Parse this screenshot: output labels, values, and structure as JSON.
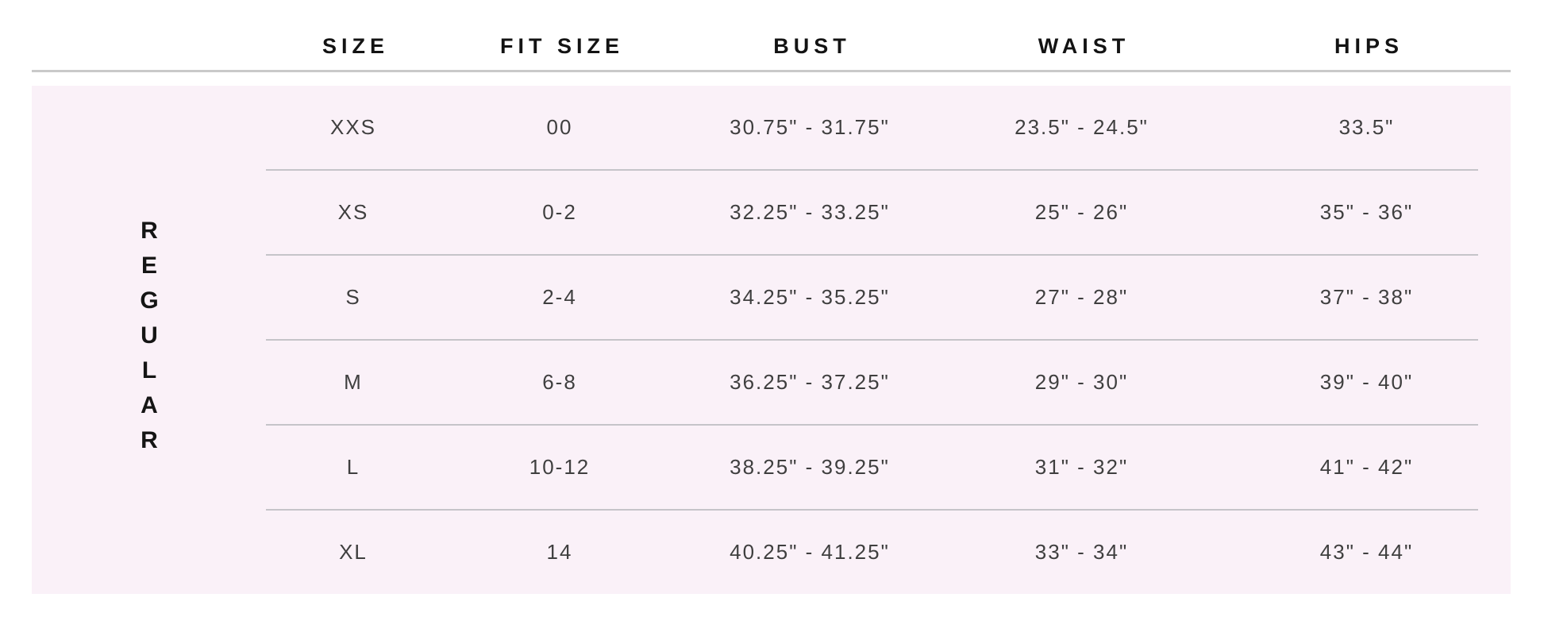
{
  "table": {
    "group_label": "REGULAR",
    "columns": {
      "size": "SIZE",
      "fit_size": "FIT SIZE",
      "bust": "BUST",
      "waist": "WAIST",
      "hips": "HIPS"
    },
    "rows": [
      {
        "size": "XXS",
        "fit_size": "00",
        "bust": "30.75\" - 31.75\"",
        "waist": "23.5\" - 24.5\"",
        "hips": "33.5\""
      },
      {
        "size": "XS",
        "fit_size": "0-2",
        "bust": "32.25\" - 33.25\"",
        "waist": "25\" - 26\"",
        "hips": "35\" - 36\""
      },
      {
        "size": "S",
        "fit_size": "2-4",
        "bust": "34.25\" - 35.25\"",
        "waist": "27\" - 28\"",
        "hips": "37\" - 38\""
      },
      {
        "size": "M",
        "fit_size": "6-8",
        "bust": "36.25\" - 37.25\"",
        "waist": "29\" - 30\"",
        "hips": "39\" - 40\""
      },
      {
        "size": "L",
        "fit_size": "10-12",
        "bust": "38.25\" - 39.25\"",
        "waist": "31\" - 32\"",
        "hips": "41\" - 42\""
      },
      {
        "size": "XL",
        "fit_size": "14",
        "bust": "40.25\" - 41.25\"",
        "waist": "33\" - 34\"",
        "hips": "43\" - 44\""
      }
    ],
    "colors": {
      "panel_background": "#faf1f8",
      "header_divider": "#c9c9c9",
      "row_divider": "#c5c4c9",
      "header_text": "#131313",
      "body_text": "#3f3f3f"
    }
  },
  "chart_data": {
    "type": "table",
    "title": "",
    "group_label": "REGULAR",
    "columns": [
      "SIZE",
      "FIT SIZE",
      "BUST",
      "WAIST",
      "HIPS"
    ],
    "rows": [
      [
        "XXS",
        "00",
        "30.75\" - 31.75\"",
        "23.5\" - 24.5\"",
        "33.5\""
      ],
      [
        "XS",
        "0-2",
        "32.25\" - 33.25\"",
        "25\" - 26\"",
        "35\" - 36\""
      ],
      [
        "S",
        "2-4",
        "34.25\" - 35.25\"",
        "27\" - 28\"",
        "37\" - 38\""
      ],
      [
        "M",
        "6-8",
        "36.25\" - 37.25\"",
        "29\" - 30\"",
        "39\" - 40\""
      ],
      [
        "L",
        "10-12",
        "38.25\" - 39.25\"",
        "31\" - 32\"",
        "41\" - 42\""
      ],
      [
        "XL",
        "14",
        "40.25\" - 41.25\"",
        "33\" - 34\"",
        "43\" - 44\""
      ]
    ]
  }
}
